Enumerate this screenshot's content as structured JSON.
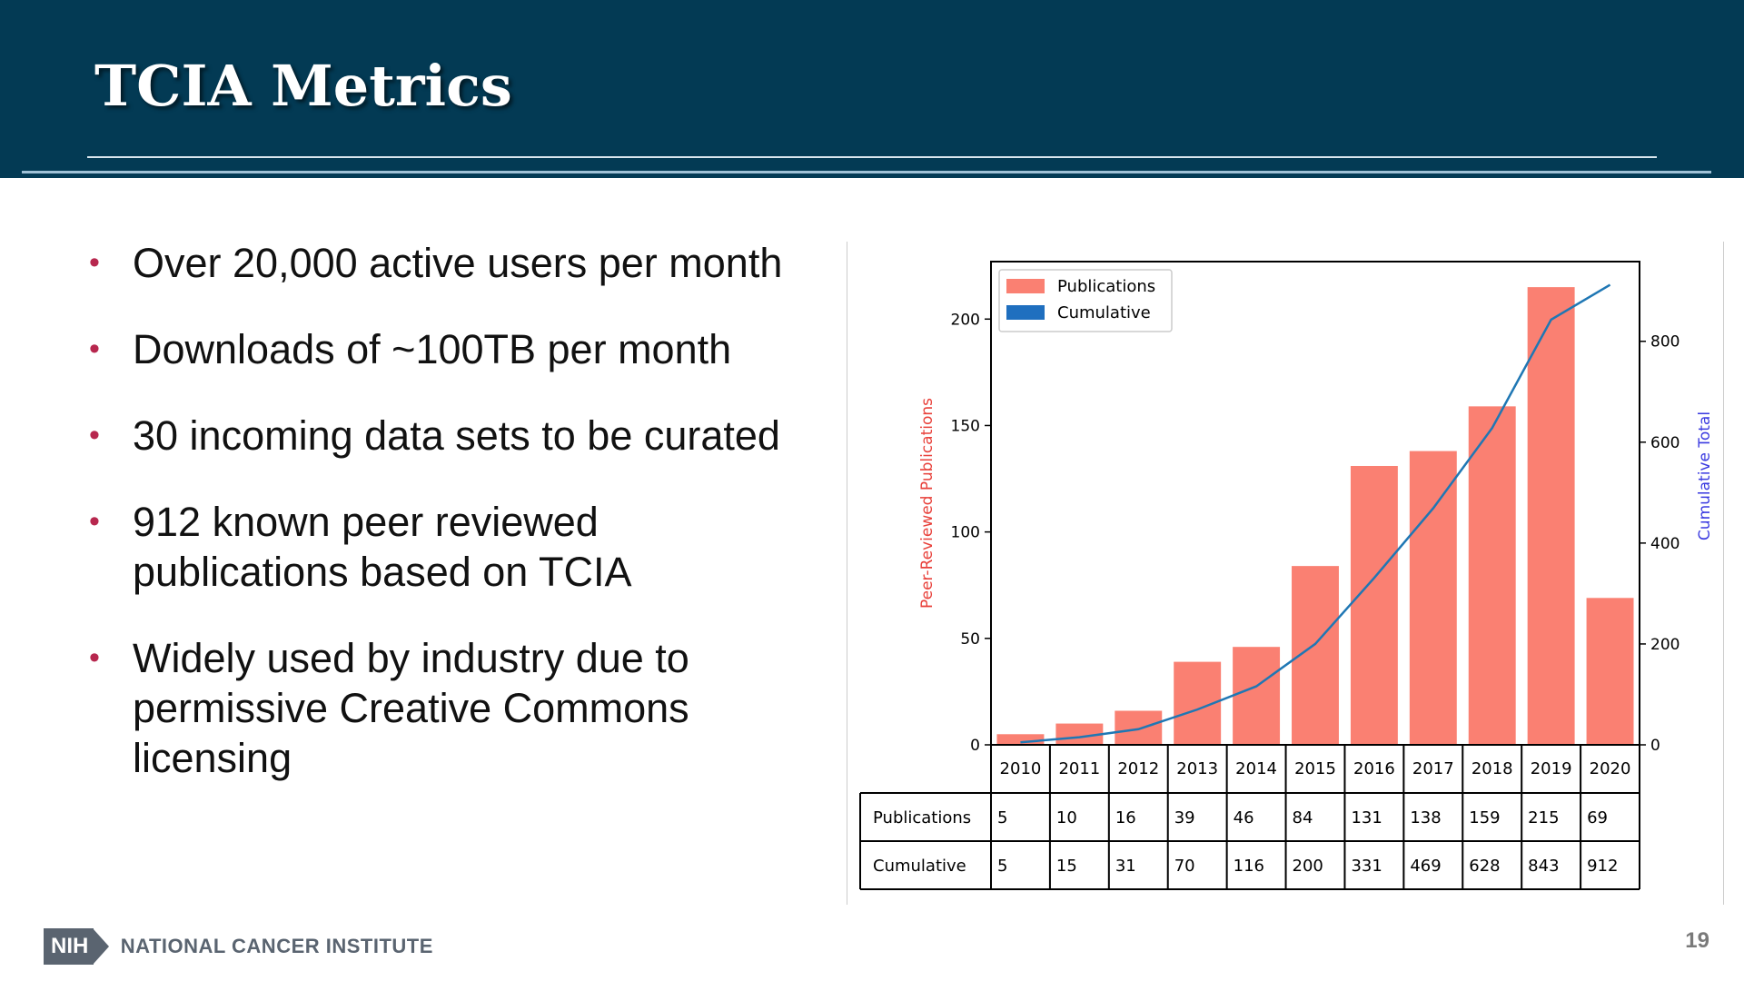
{
  "slide": {
    "title": "TCIA Metrics",
    "page_number": "19",
    "footer_org": "NATIONAL CANCER INSTITUTE",
    "footer_logo_text": "NIH",
    "bullets": [
      "Over 20,000 active users per month",
      "Downloads of ~100TB per month",
      "30 incoming data sets to be curated",
      "912 known peer reviewed publications based on TCIA",
      "Widely used by industry due to permissive Creative Commons licensing"
    ],
    "bullet_marker": "•"
  },
  "chart_data": {
    "type": "bar",
    "categories": [
      "2010",
      "2011",
      "2012",
      "2013",
      "2014",
      "2015",
      "2016",
      "2017",
      "2018",
      "2019",
      "2020"
    ],
    "series": [
      {
        "name": "Publications",
        "type": "bar",
        "axis": "left",
        "color": "#fa8072",
        "values": [
          5,
          10,
          16,
          39,
          46,
          84,
          131,
          138,
          159,
          215,
          69
        ]
      },
      {
        "name": "Cumulative",
        "type": "line",
        "axis": "right",
        "color": "#1f77b4",
        "values": [
          5,
          15,
          31,
          70,
          116,
          200,
          331,
          469,
          628,
          843,
          912
        ]
      }
    ],
    "ylabel": "Peer-Reviewed Publications",
    "ylabel_color": "#e8403a",
    "y2label": "Cumulative Total",
    "y2label_color": "#3a3ae0",
    "ylim": [
      0,
      227
    ],
    "y2lim": [
      0,
      958
    ],
    "yticks": [
      0,
      50,
      100,
      150,
      200
    ],
    "y2ticks": [
      0,
      200,
      400,
      600,
      800
    ],
    "legend_position": "top-left",
    "legend_swatch_cumulative": "#1f6fbf",
    "table": {
      "row_labels": [
        "Publications",
        "Cumulative"
      ],
      "rows": [
        [
          "5",
          "10",
          "16",
          "39",
          "46",
          "84",
          "131",
          "138",
          "159",
          "215",
          "69"
        ],
        [
          "5",
          "15",
          "31",
          "70",
          "116",
          "200",
          "331",
          "469",
          "628",
          "843",
          "912"
        ]
      ]
    }
  }
}
